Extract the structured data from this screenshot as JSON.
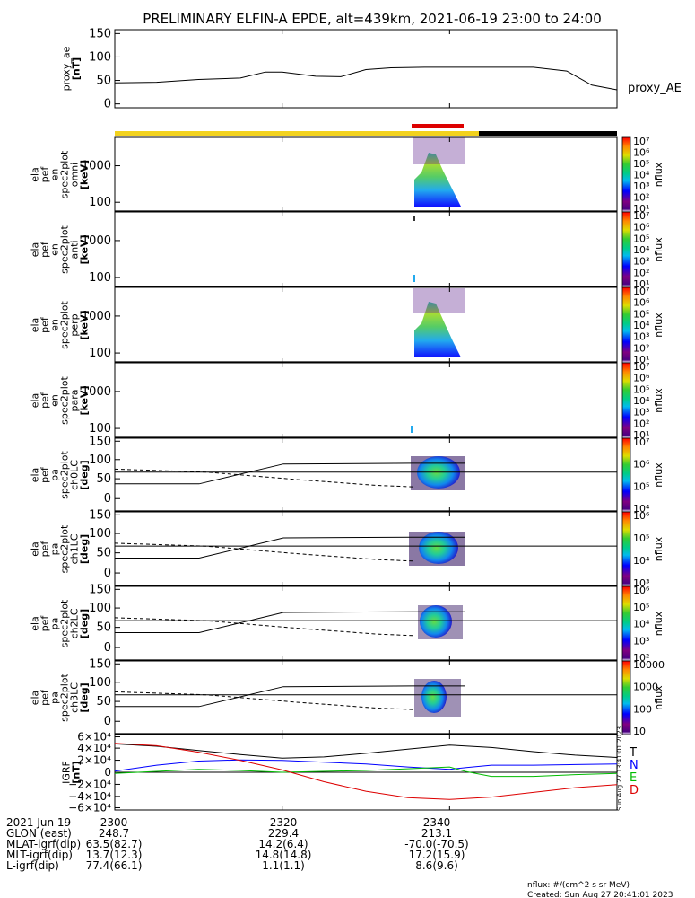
{
  "title": "PRELIMINARY ELFIN-A EPDE, alt=439km, 2021-06-19 23:00 to 24:00",
  "colors": {
    "axis": "#000000",
    "science_bar": "#f2d21e",
    "science_bar_dark": "#000000",
    "highlight_bar": "#dd0000",
    "trace_T": "#000000",
    "trace_N": "#0000ff",
    "trace_E": "#00bb00",
    "trace_D": "#dd0000"
  },
  "panels": [
    {
      "label": "proxy_ae [nT]",
      "lines": [
        "proxy_ae",
        "[nT]"
      ],
      "right_label": "proxy_AE",
      "ticks": [
        "150",
        "100",
        "50",
        "0"
      ]
    },
    {
      "label": "ela pef en spec2plot omni [keV]",
      "lines": [
        "ela",
        "pef",
        "en",
        "spec2plot",
        "omni",
        "[keV]"
      ],
      "ticks": [
        "1000",
        "100"
      ],
      "cbar_label": "nflux"
    },
    {
      "label": "ela pef en spec2plot anti [keV]",
      "lines": [
        "ela",
        "pef",
        "en",
        "spec2plot",
        "anti",
        "[keV]"
      ],
      "ticks": [
        "1000",
        "100"
      ],
      "cbar_label": "nflux"
    },
    {
      "label": "ela pef en spec2plot perp [keV]",
      "lines": [
        "ela",
        "pef",
        "en",
        "spec2plot",
        "perp",
        "[keV]"
      ],
      "ticks": [
        "1000",
        "100"
      ],
      "cbar_label": "nflux"
    },
    {
      "label": "ela pef en spec2plot para [keV]",
      "lines": [
        "ela",
        "pef",
        "en",
        "spec2plot",
        "para",
        "[keV]"
      ],
      "ticks": [
        "1000",
        "100"
      ],
      "cbar_label": "nflux"
    },
    {
      "label": "ela pef pa spec2plot ch0LC [deg]",
      "lines": [
        "ela",
        "pef",
        "pa",
        "spec2plot",
        "ch0LC",
        "[deg]"
      ],
      "ticks": [
        "150",
        "100",
        "50",
        "0"
      ],
      "cbar_label": "nflux"
    },
    {
      "label": "ela pef pa spec2plot ch1LC [deg]",
      "lines": [
        "ela",
        "pef",
        "pa",
        "spec2plot",
        "ch1LC",
        "[deg]"
      ],
      "ticks": [
        "150",
        "100",
        "50",
        "0"
      ],
      "cbar_label": "nflux"
    },
    {
      "label": "ela pef pa spec2plot ch2LC [deg]",
      "lines": [
        "ela",
        "pef",
        "pa",
        "spec2plot",
        "ch2LC",
        "[deg]"
      ],
      "ticks": [
        "150",
        "100",
        "50",
        "0"
      ],
      "cbar_label": "nflux"
    },
    {
      "label": "ela pef pa spec2plot ch3LC [deg]",
      "lines": [
        "ela",
        "pef",
        "pa",
        "spec2plot",
        "ch3LC",
        "[deg]"
      ],
      "ticks": [
        "150",
        "100",
        "50",
        "0"
      ],
      "cbar_label": "nflux"
    },
    {
      "label": "IGRF [nT]",
      "lines": [
        "IGRF",
        "[nT]"
      ],
      "ticks": [
        "6×10⁴",
        "4×10⁴",
        "2×10⁴",
        "0",
        "−2×10⁴",
        "−4×10⁴",
        "−6×10⁴"
      ],
      "legend": [
        "T",
        "N",
        "E",
        "D"
      ]
    }
  ],
  "colorbars": [
    {
      "ticks": [
        "10⁷",
        "10⁶",
        "10⁵",
        "10⁴",
        "10³",
        "10²",
        "10¹"
      ]
    },
    {
      "ticks": [
        "10⁷",
        "10⁶",
        "10⁵",
        "10⁴",
        "10³",
        "10²",
        "10¹"
      ]
    },
    {
      "ticks": [
        "10⁷",
        "10⁶",
        "10⁵",
        "10⁴",
        "10³",
        "10²",
        "10¹"
      ]
    },
    {
      "ticks": [
        "10⁷",
        "10⁶",
        "10⁵",
        "10⁴",
        "10³",
        "10²",
        "10¹"
      ]
    },
    {
      "ticks": [
        "10⁷",
        "10⁶",
        "10⁵",
        "10⁴"
      ]
    },
    {
      "ticks": [
        "10⁶",
        "10⁵",
        "10⁴",
        "10³"
      ]
    },
    {
      "ticks": [
        "10⁶",
        "10⁵",
        "10⁴",
        "10³",
        "10²"
      ]
    },
    {
      "ticks": [
        "10000",
        "1000",
        "100",
        "10"
      ]
    }
  ],
  "time_ticks": [
    "2300",
    "2320",
    "2340"
  ],
  "footer_rows": [
    {
      "label": "2021 Jun 19",
      "values": [
        "2300",
        "2320",
        "2340"
      ]
    },
    {
      "label": "GLON (east)",
      "values": [
        "248.7",
        "229.4",
        "213.1"
      ]
    },
    {
      "label": "MLAT-igrf(dip)",
      "values": [
        "63.5(82.7)",
        "14.2(6.4)",
        "-70.0(-70.5)"
      ]
    },
    {
      "label": "MLT-igrf(dip)",
      "values": [
        "13.7(12.3)",
        "14.8(14.8)",
        "17.2(15.9)"
      ]
    },
    {
      "label": "L-igrf(dip)",
      "values": [
        "77.4(66.1)",
        "1.1(1.1)",
        "8.6(9.6)"
      ]
    }
  ],
  "units_note": "nflux: #/(cm^2 s sr MeV)",
  "created": "Created: Sun Aug 27 20:41:01 2023",
  "side_stamp": "Sun Aug 27 13:41:01 2023",
  "chart_data": {
    "type": "line",
    "title": "PRELIMINARY ELFIN-A EPDE, alt=439km, 2021-06-19 23:00 to 24:00",
    "x_unit": "UT (HHMM)",
    "x_range": [
      "2300",
      "2400"
    ],
    "series": [
      {
        "name": "proxy_AE",
        "ylim": [
          0,
          150
        ],
        "x": [
          "2300",
          "2305",
          "2310",
          "2315",
          "2318",
          "2320",
          "2324",
          "2327",
          "2330",
          "2333",
          "2337",
          "2340",
          "2345",
          "2350",
          "2354",
          "2357",
          "2400"
        ],
        "y": [
          45,
          46,
          52,
          55,
          68,
          68,
          59,
          58,
          73,
          77,
          78,
          78,
          78,
          78,
          70,
          40,
          30
        ]
      },
      {
        "name": "T",
        "units": "nT",
        "ylim": [
          -60000,
          60000
        ],
        "x": [
          "2300",
          "2305",
          "2310",
          "2315",
          "2320",
          "2325",
          "2330",
          "2335",
          "2340",
          "2345",
          "2350",
          "2355",
          "2400"
        ],
        "y": [
          48000,
          44000,
          37000,
          30000,
          24000,
          26000,
          32000,
          39000,
          46000,
          42000,
          35000,
          29000,
          25000
        ]
      },
      {
        "name": "N",
        "units": "nT",
        "ylim": [
          -60000,
          60000
        ],
        "x": [
          "2300",
          "2305",
          "2310",
          "2315",
          "2320",
          "2325",
          "2330",
          "2335",
          "2340",
          "2342",
          "2345",
          "2350",
          "2355",
          "2400"
        ],
        "y": [
          2000,
          12000,
          19000,
          21000,
          20000,
          17000,
          14000,
          9000,
          5000,
          8000,
          12000,
          12000,
          13000,
          14000
        ]
      },
      {
        "name": "E",
        "units": "nT",
        "ylim": [
          -60000,
          60000
        ],
        "x": [
          "2300",
          "2310",
          "2315",
          "2320",
          "2330",
          "2335",
          "2340",
          "2342",
          "2345",
          "2350",
          "2355",
          "2400"
        ],
        "y": [
          -2000,
          5000,
          3000,
          0,
          3000,
          6000,
          9000,
          1000,
          -7000,
          -7000,
          -4000,
          -2000
        ]
      },
      {
        "name": "D",
        "units": "nT",
        "ylim": [
          -60000,
          60000
        ],
        "x": [
          "2300",
          "2305",
          "2310",
          "2315",
          "2320",
          "2325",
          "2330",
          "2335",
          "2340",
          "2345",
          "2350",
          "2355",
          "2400"
        ],
        "y": [
          49000,
          45000,
          34000,
          20000,
          4000,
          -16000,
          -32000,
          -43000,
          -46000,
          -42000,
          -34000,
          -26000,
          -21000
        ]
      }
    ]
  }
}
